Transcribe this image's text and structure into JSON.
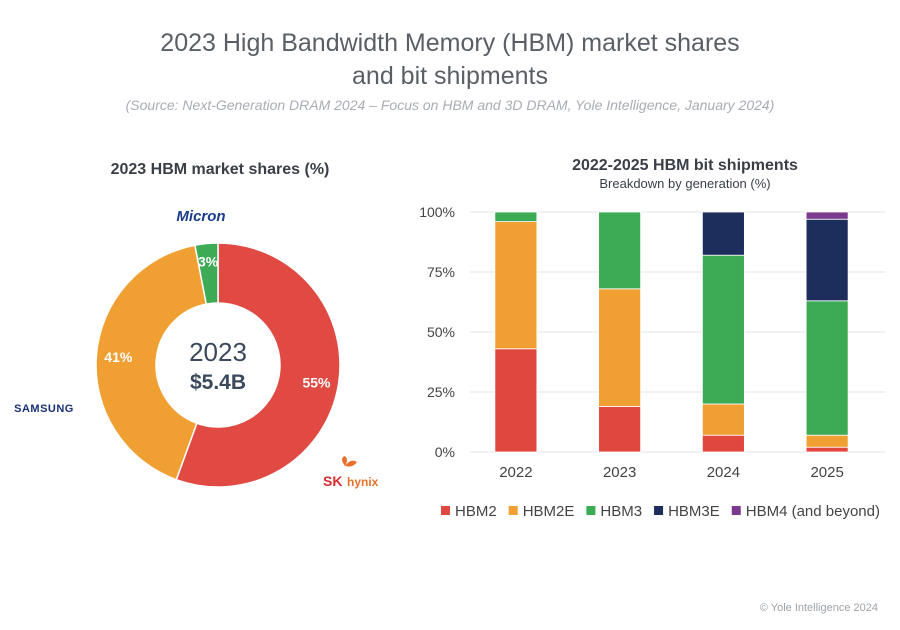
{
  "title": {
    "line1": "2023 High Bandwidth Memory (HBM) market shares",
    "line2": "and bit shipments",
    "source": "(Source: Next-Generation DRAM 2024 – Focus on HBM and 3D DRAM, Yole Intelligence, January 2024)"
  },
  "copyright": "© Yole Intelligence 2024",
  "colors": {
    "hbm2": "#e0473f",
    "hbm2e": "#f0a032",
    "hbm3": "#3daa55",
    "hbm3e": "#1d2d5c",
    "hbm4": "#7b3a8e"
  },
  "chart_data": [
    {
      "type": "pie",
      "subtype": "donut",
      "title": "2023 HBM market shares (%)",
      "center_label": {
        "year": "2023",
        "value": "$5.4B"
      },
      "slices": [
        {
          "label": "SK hynix",
          "value": 55,
          "value_label": "55%",
          "color": "#e04a43"
        },
        {
          "label": "SAMSUNG",
          "value": 41,
          "value_label": "41%",
          "color": "#f0a032"
        },
        {
          "label": "Micron",
          "value": 3,
          "value_label": "3%",
          "color": "#3daa55"
        }
      ],
      "brand_labels": {
        "micron": "Micron",
        "samsung": "SAMSUNG",
        "sk": "SK",
        "hynix": "hynix"
      }
    },
    {
      "type": "bar",
      "subtype": "stacked-100",
      "title": "2022-2025 HBM bit shipments",
      "subtitle": "Breakdown by generation (%)",
      "xlabel": "",
      "ylabel": "",
      "ylim": [
        0,
        100
      ],
      "yticks": [
        0,
        25,
        50,
        75,
        100
      ],
      "ytick_labels": [
        "0%",
        "25%",
        "50%",
        "75%",
        "100%"
      ],
      "grid": true,
      "legend": "bottom",
      "categories": [
        "2022",
        "2023",
        "2024",
        "2025"
      ],
      "series": [
        {
          "name": "HBM2",
          "color": "#e0473f",
          "values": [
            43,
            19,
            7,
            2
          ]
        },
        {
          "name": "HBM2E",
          "color": "#f0a032",
          "values": [
            53,
            49,
            13,
            5
          ]
        },
        {
          "name": "HBM3",
          "color": "#3daa55",
          "values": [
            4,
            32,
            62,
            56
          ]
        },
        {
          "name": "HBM3E",
          "color": "#1d2d5c",
          "values": [
            0,
            0,
            18,
            34
          ]
        },
        {
          "name": "HBM4 (and beyond)",
          "color": "#7b3a8e",
          "values": [
            0,
            0,
            0,
            3
          ]
        }
      ]
    }
  ]
}
